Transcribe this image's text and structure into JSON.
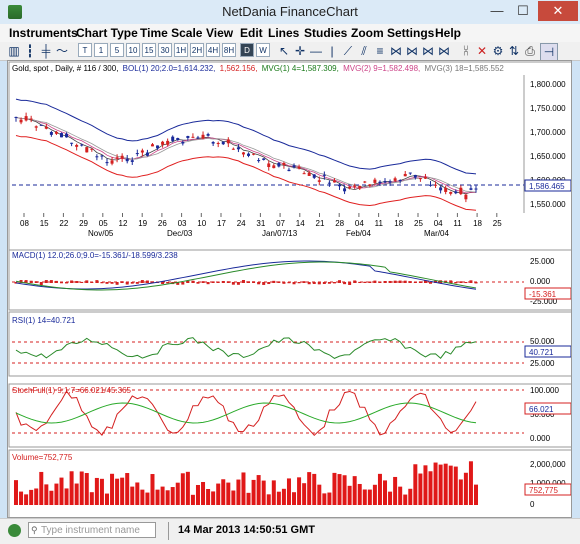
{
  "window": {
    "title": "NetDania FinanceChart",
    "min_glyph": "—",
    "max_glyph": "☐",
    "close_glyph": "✕"
  },
  "menu": [
    "Instruments",
    "Chart Type",
    "Time Scale",
    "View",
    "Edit",
    "Lines",
    "Studies",
    "Zoom",
    "Settings",
    "Help"
  ],
  "toolbar": {
    "timescales": [
      "T",
      "1",
      "5",
      "10",
      "15",
      "30",
      "1H",
      "2H",
      "4H",
      "8H",
      "D",
      "W"
    ],
    "selected_timescale": "D"
  },
  "chart": {
    "info_line": {
      "instrument": "Gold, spot , Daily, # 116 / 300,",
      "bol": "BOL(1) 20;2.0=1,614.232,",
      "bol_lower": "1,562.156,",
      "mvg1": "MVG(1) 4=1,587.309,",
      "mvg2": "MVG(2) 9=1,582.498,",
      "mvg3": "MVG(3) 18=1,585.552"
    },
    "colors": {
      "up": "#1a2a9a",
      "down": "#d42020",
      "bol_upper": "#1a2a9a",
      "bol_lower": "#e02020",
      "mvg1": "#444444",
      "mvg2": "#cc4488",
      "mvg3": "#999999",
      "cursor": "#1a2a9a"
    },
    "price_axis": [
      "1,800.000",
      "1,750.000",
      "1,700.000",
      "1,650.000",
      "1,600.000",
      "1,550.000"
    ],
    "current_price": "1,586.465",
    "day_ticks": [
      "08",
      "15",
      "22",
      "29",
      "05",
      "12",
      "19",
      "26",
      "03",
      "10",
      "17",
      "24",
      "31",
      "07",
      "14",
      "21",
      "28",
      "04",
      "11",
      "18",
      "25",
      "04",
      "11",
      "18",
      "25"
    ],
    "month_labels": [
      "Nov/05",
      "Dec/03",
      "Jan/07/13",
      "Feb/04",
      "Mar/04"
    ]
  },
  "macd": {
    "label": "MACD(1) 12.0;26.0;9.0=-15.361/-18.599/3.238",
    "axis": [
      "25.000",
      "0.000",
      "-25.000"
    ],
    "value": "-15.361"
  },
  "rsi": {
    "label": "RSI(1) 14=40.721",
    "axis": [
      "50.000",
      "25.000"
    ],
    "value": "40.721"
  },
  "stoch": {
    "label": "StochFull(1) 9;1;7=66.021/45.365",
    "label_value2": "45.365",
    "axis": [
      "100.000",
      "50.000",
      "0.000"
    ],
    "value": "66.021"
  },
  "volume": {
    "label": "Volume=752,775",
    "axis": [
      "2,000,000",
      "1,000,000",
      "0"
    ],
    "value": "752,775"
  },
  "status": {
    "placeholder": "Type instrument name",
    "timestamp": "14 Mar 2013 14:50:51 GMT"
  }
}
